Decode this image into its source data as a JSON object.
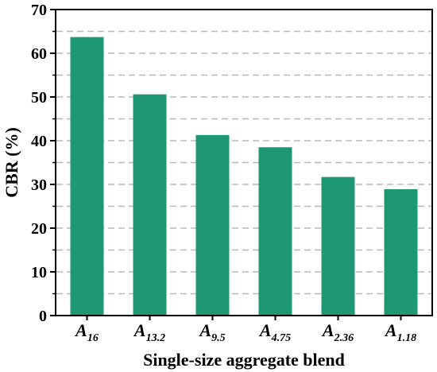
{
  "chart_data": {
    "type": "bar",
    "categories": [
      {
        "base": "A",
        "sub": "16"
      },
      {
        "base": "A",
        "sub": "13.2"
      },
      {
        "base": "A",
        "sub": "9.5"
      },
      {
        "base": "A",
        "sub": "4.75"
      },
      {
        "base": "A",
        "sub": "2.36"
      },
      {
        "base": "A",
        "sub": "1.18"
      }
    ],
    "values": [
      63.7,
      50.6,
      41.3,
      38.5,
      31.7,
      28.9
    ],
    "xlabel": "Single-size aggregate blend",
    "ylabel": "CBR (%)",
    "ylim": [
      0,
      70
    ],
    "yticks": [
      0,
      10,
      20,
      30,
      40,
      50,
      60,
      70
    ],
    "grid_minor_step": 5,
    "grid": "dashed horizontal",
    "legend": "none",
    "bar_color": "#1e9873",
    "grid_color": "#b8b8b8"
  }
}
